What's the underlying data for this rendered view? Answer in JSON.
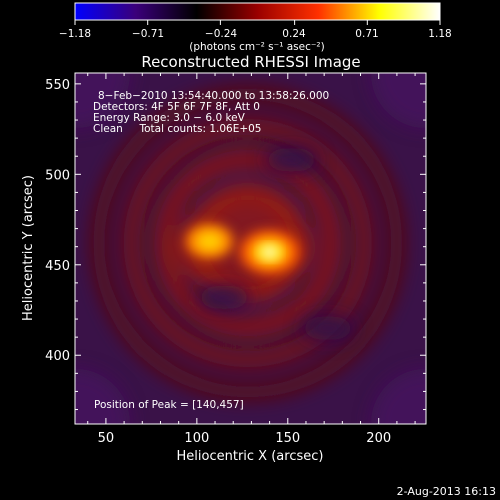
{
  "title": "Reconstructed RHESSI Image",
  "footer_date": "2-Aug-2013 16:13",
  "colorbar": {
    "unit_line": "(photons cm⁻² s⁻¹ asec⁻²)",
    "ticks": [
      "−1.18",
      "−0.71",
      "−0.24",
      "0.24",
      "0.71",
      "1.18"
    ],
    "tick_values": [
      -1.18,
      -0.71,
      -0.24,
      0.24,
      0.71,
      1.18
    ],
    "range": [
      -1.18,
      1.18
    ]
  },
  "info": {
    "time": "8−Feb−2010 13:54:40.000 to 13:58:26.000",
    "detectors": "Detectors: 4F 5F 6F 7F 8F, Att 0",
    "energy": "Energy Range: 3.0 − 6.0 keV",
    "clean": "Clean     Total counts: 1.06E+05",
    "peak": "Position of Peak = [140,457]"
  },
  "chart_data": {
    "type": "heatmap",
    "title": "Reconstructed RHESSI Image",
    "xlabel": "Heliocentric X (arcsec)",
    "ylabel": "Heliocentric Y (arcsec)",
    "xlim": [
      33,
      226
    ],
    "ylim": [
      362,
      556
    ],
    "x_ticks": [
      50,
      100,
      150,
      200
    ],
    "y_ticks": [
      400,
      450,
      500,
      550
    ],
    "peak_position": [
      140,
      457
    ],
    "sources": [
      {
        "x": 140,
        "y": 457,
        "value": 1.18
      },
      {
        "x": 107,
        "y": 463,
        "value": 0.8
      }
    ],
    "ring_center": [
      128,
      462
    ],
    "ring_radius_arcsec": [
      28,
      46,
      64,
      82
    ],
    "negative_regions": [
      {
        "x": 152,
        "y": 508
      },
      {
        "x": 115,
        "y": 432
      },
      {
        "x": 172,
        "y": 415
      }
    ],
    "background_value": -0.3,
    "colormap": "RHESSI blue–black–red–yellow–white",
    "colormap_stops": [
      "#0000ff",
      "#3a007a",
      "#000000",
      "#9a0000",
      "#ff3000",
      "#ffff00",
      "#ffffff"
    ]
  }
}
